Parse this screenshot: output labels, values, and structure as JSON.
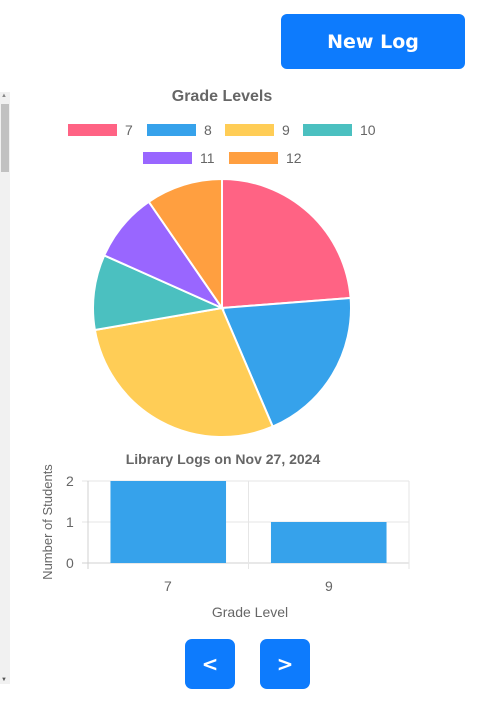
{
  "header": {
    "new_log_label": "New Log"
  },
  "navigation": {
    "prev_label": "<",
    "next_label": ">"
  },
  "chart_data": [
    {
      "type": "pie",
      "title": "Grade Levels",
      "categories": [
        "7",
        "8",
        "9",
        "10",
        "11",
        "12"
      ],
      "values": [
        24,
        20,
        29,
        9.5,
        8.8,
        9.7
      ],
      "colors": [
        "#ff6384",
        "#36a2eb",
        "#ffcd56",
        "#4bc0c0",
        "#9966ff",
        "#ff9f40"
      ]
    },
    {
      "type": "bar",
      "title": "Library Logs on Nov 27, 2024",
      "categories": [
        "7",
        "9"
      ],
      "values": [
        2,
        1
      ],
      "xlabel": "Grade Level",
      "ylabel": "Number of Students",
      "ylim": [
        0,
        2
      ],
      "yticks": [
        "0",
        "1",
        "2"
      ],
      "color": "#36a2eb"
    }
  ]
}
